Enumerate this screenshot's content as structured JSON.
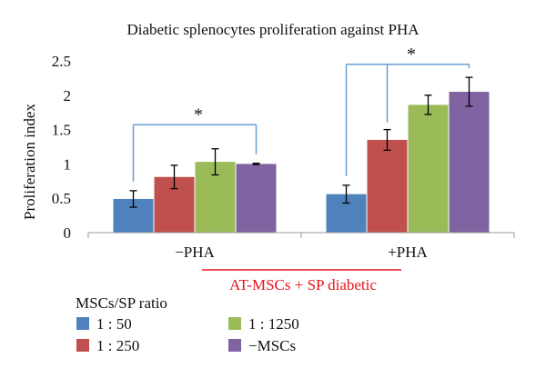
{
  "chart_data": {
    "type": "bar",
    "title": "Diabetic splenocytes proliferation against PHA",
    "ylabel": "Proliferation index",
    "xlabel": "",
    "ylim": [
      0,
      2.5
    ],
    "yticks": [
      "0",
      "0.5",
      "1",
      "1.5",
      "2",
      "2.5"
    ],
    "ytick_values": [
      0,
      0.5,
      1,
      1.5,
      2,
      2.5
    ],
    "grid": false,
    "categories": [
      "−PHA",
      "+PHA"
    ],
    "series": [
      {
        "name": "1 : 50",
        "color": "#4f81bd",
        "values": [
          0.49,
          0.56
        ],
        "errors": [
          0.12,
          0.13
        ]
      },
      {
        "name": "1 : 250",
        "color": "#c0504d",
        "values": [
          0.81,
          1.35
        ],
        "errors": [
          0.17,
          0.15
        ]
      },
      {
        "name": "1 : 1250",
        "color": "#9bbb59",
        "values": [
          1.03,
          1.86
        ],
        "errors": [
          0.19,
          0.14
        ]
      },
      {
        "name": "−MSCs",
        "color": "#8064a2",
        "values": [
          1.0,
          2.05
        ],
        "errors": [
          0.01,
          0.21
        ]
      }
    ],
    "significance": [
      {
        "label": "*",
        "category_index": 0,
        "bracket_y": 1.57
      },
      {
        "label": "*",
        "category_index": 1,
        "bracket_y": 2.45
      }
    ],
    "group_annotation": {
      "text": "AT-MSCs + SP diabetic",
      "color": "#e8141c"
    },
    "legend": {
      "title": "MSCs/SP ratio",
      "placement": "bottom-left"
    }
  }
}
